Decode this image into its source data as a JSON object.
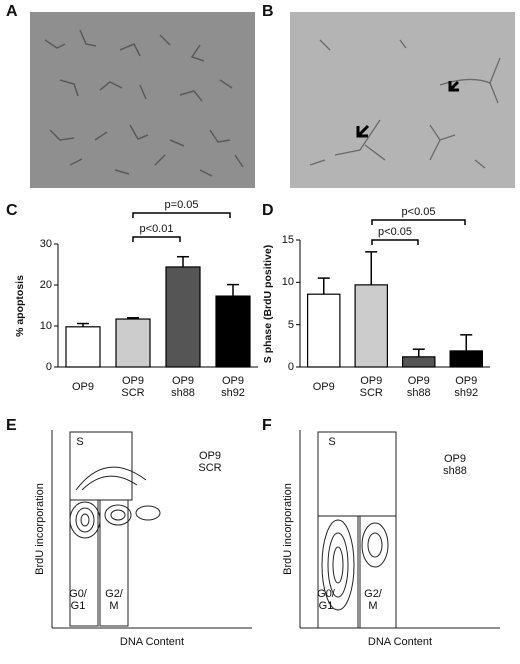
{
  "panel_labels": [
    "A",
    "B",
    "C",
    "D",
    "E",
    "F"
  ],
  "chart_data": [
    {
      "type": "bar",
      "y_label": "% apoptosis",
      "categories": [
        "OP9",
        "OP9\nSCR",
        "OP9\nsh88",
        "OP9\nsh92"
      ],
      "values": [
        9.8,
        11.7,
        24.4,
        17.3
      ],
      "errors": [
        0.8,
        0.3,
        2.5,
        2.8
      ],
      "colors": [
        "#ffffff",
        "#cccccc",
        "#555555",
        "#000000"
      ],
      "ylim": [
        0,
        30
      ],
      "yticks": [
        0,
        10,
        20,
        30
      ],
      "annotations": [
        "p=0.05",
        "p<0.01"
      ]
    },
    {
      "type": "bar",
      "y_label": "S phase (BrdU positive)",
      "categories": [
        "OP9",
        "OP9\nSCR",
        "OP9\nsh88",
        "OP9\nsh92"
      ],
      "values": [
        8.6,
        9.7,
        1.2,
        1.9
      ],
      "errors": [
        1.9,
        3.9,
        0.9,
        1.9
      ],
      "colors": [
        "#ffffff",
        "#cccccc",
        "#555555",
        "#000000"
      ],
      "ylim": [
        0,
        15
      ],
      "yticks": [
        0,
        5,
        10,
        15
      ],
      "annotations": [
        "p<0.05",
        "p<0.05"
      ]
    }
  ],
  "flow_plots": [
    {
      "sample": "OP9\nSCR",
      "gates": [
        "S",
        "G0/\nG1",
        "G2/\nM"
      ],
      "y_label": "BrdU incorporation",
      "x_label": "DNA Content"
    },
    {
      "sample": "OP9\nsh88",
      "gates": [
        "S",
        "G0/\nG1",
        "G2/\nM"
      ],
      "y_label": "BrdU incorporation",
      "x_label": "DNA Content"
    }
  ]
}
